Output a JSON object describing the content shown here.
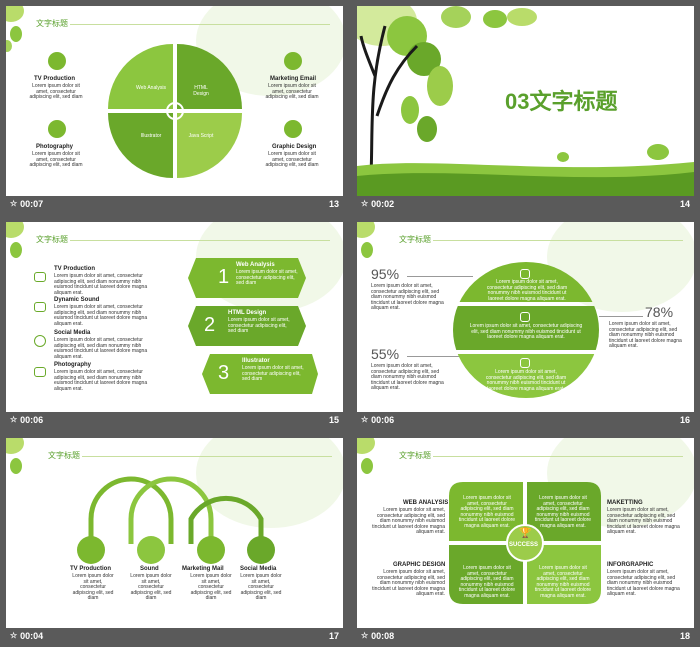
{
  "thumbnails": [
    {
      "time": "00:07",
      "page": "13"
    },
    {
      "time": "00:02",
      "page": "14"
    },
    {
      "time": "00:06",
      "page": "15"
    },
    {
      "time": "00:06",
      "page": "16"
    },
    {
      "time": "00:04",
      "page": "17"
    },
    {
      "time": "00:08",
      "page": "18"
    }
  ],
  "heading": "文字标题",
  "lorem_short": "Lorem ipsum dolor sit amet, consectetur adipiscing elit, sed diam",
  "lorem_long": "Lorem ipsum dolor sit amet, consectetur adipiscing elit, sed diam nonummy nibh euismod tincidunt ut laoreet dolore magna aliquam erat.",
  "slide13": {
    "left_items": [
      "TV Production",
      "Photography"
    ],
    "right_items": [
      "Marketing Email",
      "Graphic Design"
    ],
    "quadrants": [
      "Web Analysis",
      "HTML Design",
      "Illustrator",
      "Java Script"
    ]
  },
  "slide14": {
    "title": "03文字标题"
  },
  "slide15": {
    "items": [
      "TV Production",
      "Dynamic Sound",
      "Social Media",
      "Photography"
    ],
    "steps": [
      {
        "num": "1",
        "title": "Web Analysis"
      },
      {
        "num": "2",
        "title": "HTML Design"
      },
      {
        "num": "3",
        "title": "Illustrator"
      }
    ]
  },
  "slide16": {
    "pct1": "95%",
    "pct2": "55%",
    "pct3": "78%"
  },
  "slide17": {
    "items": [
      "TV Production",
      "Sound",
      "Marketing Mail",
      "Social Media"
    ]
  },
  "slide18": {
    "corners": [
      "WEB ANALYSIS",
      "MAKETTING",
      "GRAPHIC DESIGN",
      "INFORGRAPHIC"
    ],
    "center": "SUCCESS"
  },
  "colors": {
    "green": "#7cb82f",
    "dark_green": "#5a9a22",
    "light_green": "#c8df9f",
    "bar": "#4a4a4a"
  }
}
